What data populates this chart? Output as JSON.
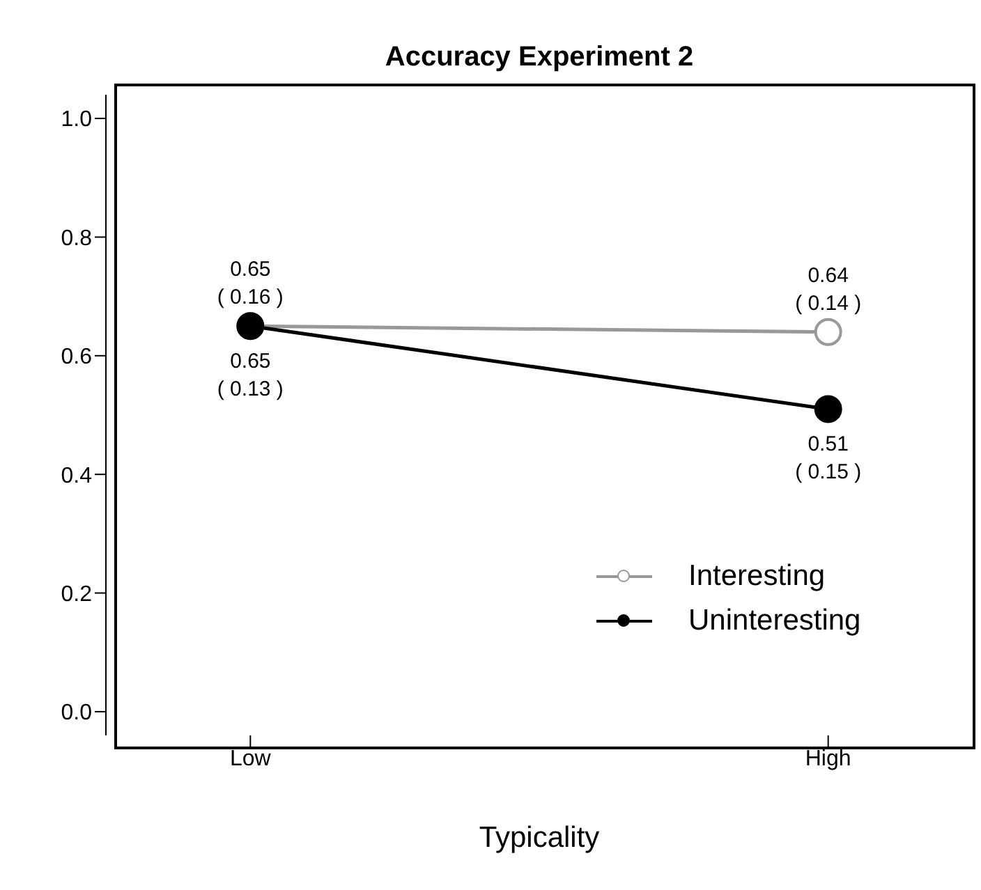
{
  "chart_data": {
    "type": "line",
    "title": "Accuracy Experiment 2",
    "xlabel": "Typicality",
    "categories": [
      "Low",
      "High"
    ],
    "series": [
      {
        "name": "Interesting",
        "color": "#999999",
        "values": [
          0.65,
          0.64
        ],
        "value_labels": [
          "0.65\n( 0.16 )",
          "0.64\n( 0.14 )"
        ]
      },
      {
        "name": "Uninteresting",
        "color": "#000000",
        "values": [
          0.65,
          0.51
        ],
        "value_labels": [
          "0.65\n( 0.13 )",
          "0.51\n( 0.15 )"
        ]
      }
    ],
    "ylim": [
      -0.04,
      1.04
    ],
    "yticks": [
      {
        "value": 0,
        "label": "0.0"
      },
      {
        "value": 0.2,
        "label": "0.2"
      },
      {
        "value": 0.4,
        "label": "0.4"
      },
      {
        "value": 0.6,
        "label": "0.6"
      },
      {
        "value": 0.8,
        "label": "0.8"
      },
      {
        "value": 1,
        "label": "1.0"
      }
    ],
    "grid": false,
    "legend": "bottom right",
    "marker": "circle",
    "line_style": "solid"
  }
}
